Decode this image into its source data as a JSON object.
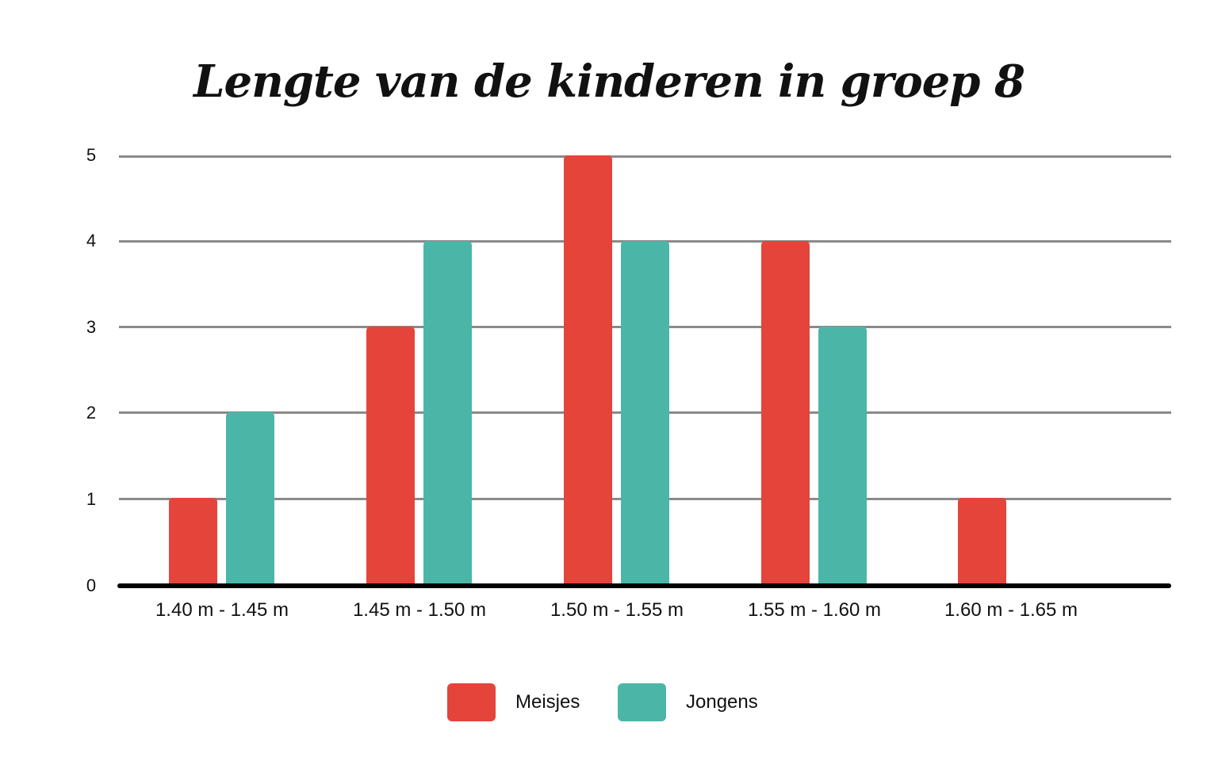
{
  "chart_data": {
    "type": "bar",
    "title": "Lengte van de kinderen in groep 8",
    "xlabel": "",
    "ylabel": "",
    "categories": [
      "1.40 m - 1.45 m",
      "1.45 m - 1.50 m",
      "1.50 m - 1.55 m",
      "1.55 m - 1.60 m",
      "1.60 m - 1.65 m"
    ],
    "series": [
      {
        "name": "Meisjes",
        "color": "#E5443A",
        "values": [
          1,
          3,
          5,
          4,
          1
        ]
      },
      {
        "name": "Jongens",
        "color": "#4BB6A8",
        "values": [
          2,
          4,
          4,
          3,
          0
        ]
      }
    ],
    "ylim": [
      0,
      5
    ],
    "yticks": [
      "0",
      "1",
      "2",
      "3",
      "4",
      "5"
    ],
    "grid": true,
    "legend_position": "bottom"
  }
}
